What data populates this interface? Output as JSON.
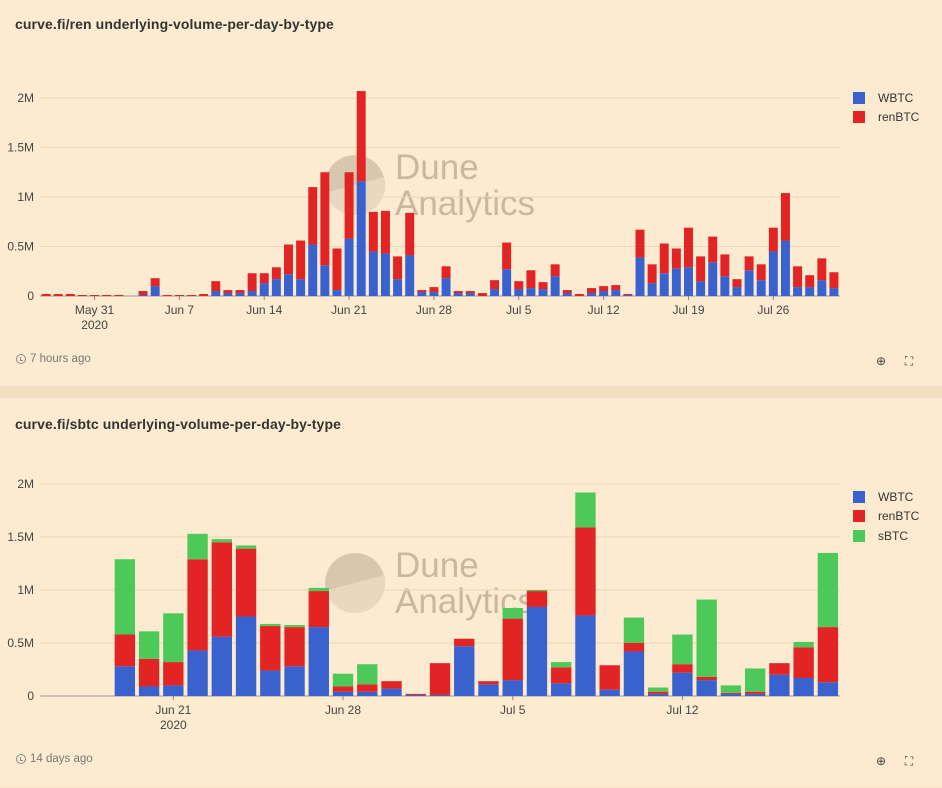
{
  "panels": [
    {
      "title": "curve.fi/ren underlying-volume-per-day-by-type",
      "updated": "7 hours ago",
      "watermark": [
        "Dune",
        "Analytics"
      ],
      "chart_data": {
        "type": "bar",
        "stacked": true,
        "ylim": [
          0,
          2000000
        ],
        "yticks": [
          {
            "v": 0,
            "label": "0"
          },
          {
            "v": 500000,
            "label": "0.5M"
          },
          {
            "v": 1000000,
            "label": "1M"
          },
          {
            "v": 1500000,
            "label": "1.5M"
          },
          {
            "v": 2000000,
            "label": "2M"
          }
        ],
        "xticks": [
          {
            "index": 4,
            "label": "May 31",
            "label2": "2020"
          },
          {
            "index": 11,
            "label": "Jun 7"
          },
          {
            "index": 18,
            "label": "Jun 14"
          },
          {
            "index": 25,
            "label": "Jun 21"
          },
          {
            "index": 32,
            "label": "Jun 28"
          },
          {
            "index": 39,
            "label": "Jul 5"
          },
          {
            "index": 46,
            "label": "Jul 12"
          },
          {
            "index": 53,
            "label": "Jul 19"
          },
          {
            "index": 60,
            "label": "Jul 26"
          }
        ],
        "legend_position": "right",
        "series": [
          {
            "name": "WBTC",
            "color": "#3a62cf",
            "values": [
              0,
              0,
              0,
              0,
              0,
              0,
              0,
              0,
              10000,
              100000,
              0,
              0,
              0,
              0,
              50000,
              30000,
              30000,
              50000,
              130000,
              170000,
              220000,
              170000,
              520000,
              310000,
              60000,
              580000,
              1160000,
              450000,
              430000,
              170000,
              410000,
              40000,
              40000,
              180000,
              30000,
              30000,
              0,
              70000,
              270000,
              70000,
              80000,
              70000,
              200000,
              30000,
              0,
              30000,
              50000,
              60000,
              10000,
              390000,
              130000,
              230000,
              280000,
              290000,
              150000,
              340000,
              200000,
              90000,
              260000,
              160000,
              450000,
              560000,
              90000,
              90000,
              160000,
              80000
            ]
          },
          {
            "name": "renBTC",
            "color": "#e32424",
            "values": [
              20000,
              20000,
              20000,
              10000,
              10000,
              10000,
              10000,
              0,
              40000,
              80000,
              10000,
              10000,
              10000,
              20000,
              100000,
              30000,
              30000,
              180000,
              100000,
              120000,
              300000,
              390000,
              580000,
              940000,
              420000,
              670000,
              910000,
              400000,
              430000,
              230000,
              430000,
              20000,
              50000,
              120000,
              20000,
              20000,
              30000,
              90000,
              270000,
              80000,
              180000,
              70000,
              120000,
              30000,
              20000,
              50000,
              50000,
              50000,
              10000,
              280000,
              190000,
              300000,
              200000,
              400000,
              250000,
              260000,
              220000,
              80000,
              140000,
              160000,
              240000,
              480000,
              210000,
              120000,
              220000,
              160000
            ]
          }
        ]
      }
    },
    {
      "title": "curve.fi/sbtc underlying-volume-per-day-by-type",
      "updated": "14 days ago",
      "watermark": [
        "Dune",
        "Analytics"
      ],
      "chart_data": {
        "type": "bar",
        "stacked": true,
        "ylim": [
          0,
          2000000
        ],
        "yticks": [
          {
            "v": 0,
            "label": "0"
          },
          {
            "v": 500000,
            "label": "0.5M"
          },
          {
            "v": 1000000,
            "label": "1M"
          },
          {
            "v": 1500000,
            "label": "1.5M"
          },
          {
            "v": 2000000,
            "label": "2M"
          }
        ],
        "xticks": [
          {
            "index": 5,
            "label": "Jun 21",
            "label2": "2020"
          },
          {
            "index": 12,
            "label": "Jun 28"
          },
          {
            "index": 19,
            "label": "Jul 5"
          },
          {
            "index": 26,
            "label": "Jul 12"
          }
        ],
        "legend_position": "right",
        "series": [
          {
            "name": "WBTC",
            "color": "#3a62cf",
            "values": [
              0,
              0,
              0,
              280000,
              90000,
              100000,
              430000,
              560000,
              750000,
              240000,
              280000,
              650000,
              40000,
              40000,
              70000,
              10000,
              10000,
              470000,
              110000,
              150000,
              840000,
              120000,
              760000,
              60000,
              420000,
              20000,
              220000,
              150000,
              20000,
              20000,
              200000,
              170000,
              130000
            ]
          },
          {
            "name": "renBTC",
            "color": "#e32424",
            "values": [
              0,
              0,
              0,
              300000,
              260000,
              220000,
              860000,
              890000,
              640000,
              420000,
              370000,
              340000,
              50000,
              70000,
              70000,
              10000,
              300000,
              70000,
              30000,
              580000,
              150000,
              150000,
              830000,
              230000,
              80000,
              20000,
              80000,
              30000,
              10000,
              20000,
              110000,
              290000,
              520000
            ]
          },
          {
            "name": "sBTC",
            "color": "#4dc95a",
            "values": [
              0,
              0,
              0,
              710000,
              260000,
              460000,
              240000,
              30000,
              30000,
              20000,
              20000,
              30000,
              120000,
              190000,
              0,
              0,
              0,
              0,
              0,
              100000,
              10000,
              50000,
              330000,
              0,
              240000,
              40000,
              280000,
              730000,
              70000,
              220000,
              0,
              50000,
              700000
            ]
          }
        ]
      }
    }
  ]
}
